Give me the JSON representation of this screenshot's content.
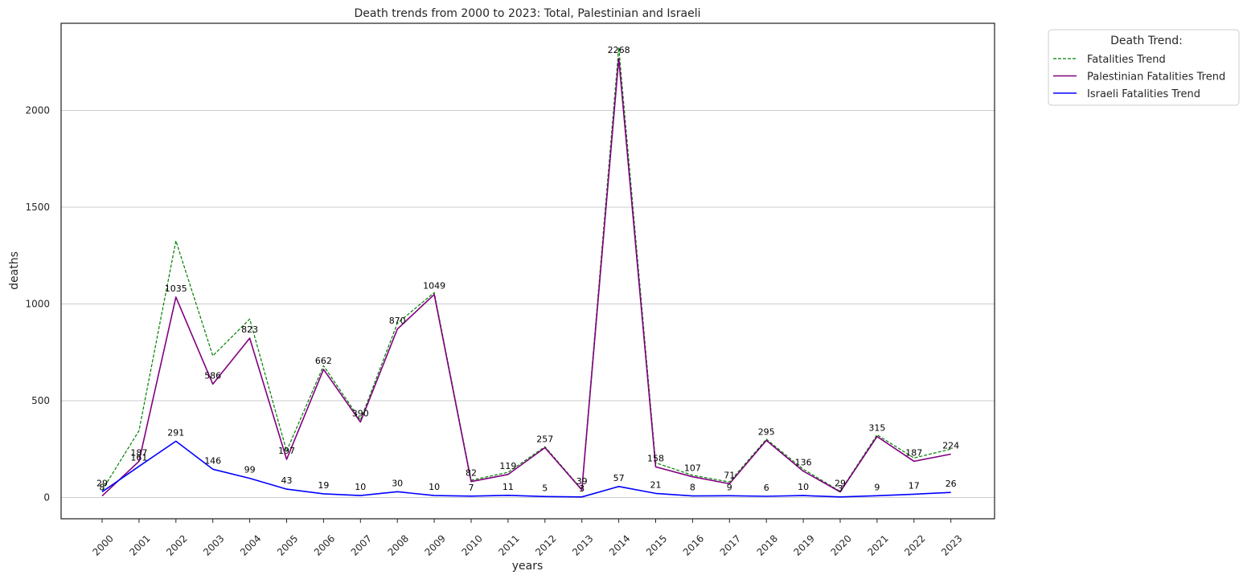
{
  "chart_data": {
    "type": "line",
    "title": "Death trends from 2000 to 2023: Total, Palestinian and Israeli",
    "xlabel": "years",
    "ylabel": "deaths",
    "categories": [
      "2000",
      "2001",
      "2002",
      "2003",
      "2004",
      "2005",
      "2006",
      "2007",
      "2008",
      "2009",
      "2010",
      "2011",
      "2012",
      "2013",
      "2014",
      "2015",
      "2016",
      "2017",
      "2018",
      "2019",
      "2020",
      "2021",
      "2022",
      "2023"
    ],
    "yticks": [
      0,
      500,
      1000,
      1500,
      2000
    ],
    "ylim": [
      -110,
      2450
    ],
    "grid": "horizontal",
    "legend": {
      "title": "Death Trend:",
      "placement": "outside-top-right"
    },
    "series": [
      {
        "name": "Fatalities Trend",
        "color": "#008000",
        "style": "dashed",
        "values": [
          37,
          345,
          1326,
          732,
          922,
          240,
          681,
          400,
          900,
          1059,
          89,
          130,
          262,
          42,
          2325,
          179,
          115,
          80,
          301,
          146,
          32,
          324,
          204,
          250
        ]
      },
      {
        "name": "Palestinian Fatalities Trend",
        "color": "#800080",
        "style": "solid",
        "values": [
          8,
          187,
          1035,
          586,
          823,
          197,
          662,
          390,
          870,
          1049,
          82,
          119,
          257,
          39,
          2268,
          158,
          107,
          71,
          295,
          136,
          29,
          315,
          187,
          224
        ],
        "labels": [
          "8",
          "187",
          "1035",
          "586",
          "823",
          "197",
          "662",
          "390",
          "870",
          "1049",
          "82",
          "119",
          "257",
          "39",
          "2268",
          "158",
          "107",
          "71",
          "295",
          "136",
          "29",
          "315",
          "187",
          "224"
        ]
      },
      {
        "name": "Israeli Fatalities Trend",
        "color": "#0000ff",
        "style": "solid",
        "values": [
          29,
          161,
          291,
          146,
          99,
          43,
          19,
          10,
          30,
          10,
          7,
          11,
          5,
          3,
          57,
          21,
          8,
          9,
          6,
          10,
          3,
          9,
          17,
          26
        ],
        "labels": [
          "29",
          "161",
          "291",
          "146",
          "99",
          "43",
          "19",
          "10",
          "30",
          "10",
          "7",
          "11",
          "5",
          "3",
          "57",
          "21",
          "8",
          "9",
          "6",
          "10",
          "3",
          "9",
          "17",
          "26"
        ]
      }
    ]
  }
}
